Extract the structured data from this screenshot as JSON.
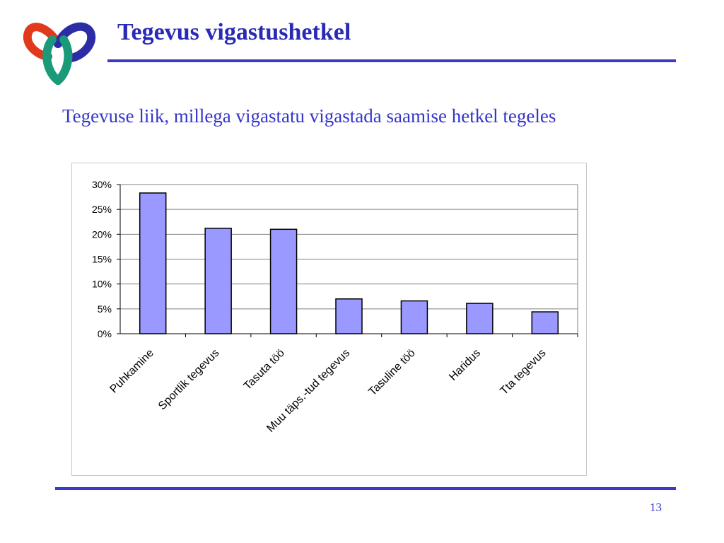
{
  "slide": {
    "title": "Tegevus vigastushetkel",
    "subtitle": "Tegevuse liik, millega vigastatu vigastada saamise hetkel tegeles",
    "page_number": "13"
  },
  "colors": {
    "title": "#2a2ab8",
    "subtitle": "#3535c8",
    "rule": "#3a3ac8",
    "bar_fill": "#9999ff",
    "bar_stroke": "#000000",
    "grid": "#808080",
    "logo_red": "#e2391d",
    "logo_blue": "#2c2da6",
    "logo_green": "#1a9a78"
  },
  "logo": {
    "icon": "three-loop-logo-icon"
  },
  "chart_data": {
    "type": "bar",
    "categories": [
      "Puhkamine",
      "Sportlik tegevus",
      "Tasuta töö",
      "Muu täps.-tud tegevus",
      "Tasuline töö",
      "Haridus",
      "Tta tegevus"
    ],
    "values": [
      28.3,
      21.2,
      21.0,
      7.0,
      6.6,
      6.1,
      4.4
    ],
    "title": "",
    "xlabel": "",
    "ylabel": "",
    "ylim": [
      0,
      30
    ],
    "y_ticks": [
      "0%",
      "5%",
      "10%",
      "15%",
      "20%",
      "25%",
      "30%"
    ],
    "y_tick_values": [
      0,
      5,
      10,
      15,
      20,
      25,
      30
    ],
    "grid": true,
    "legend": "none"
  }
}
